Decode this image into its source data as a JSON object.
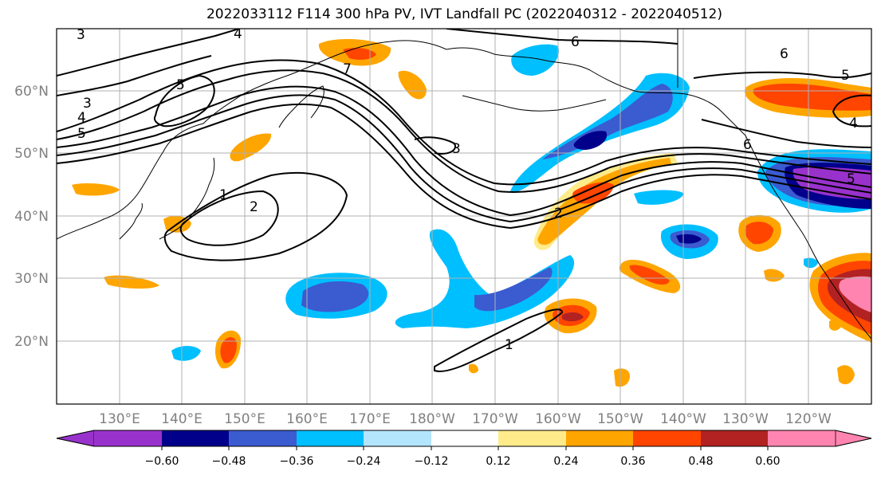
{
  "title": "2022033112 F114 300 hPa PV, IVT Landfall PC (2022040312 - 2022040512)",
  "lon_labels": [
    "130°E",
    "140°E",
    "150°E",
    "160°E",
    "170°E",
    "180°W",
    "170°W",
    "160°W",
    "150°W",
    "140°W",
    "130°W",
    "120°W"
  ],
  "lat_labels": [
    "60°N",
    "50°N",
    "40°N",
    "30°N",
    "20°N"
  ],
  "colorbar": {
    "ticks": [
      "−0.60",
      "−0.48",
      "−0.36",
      "−0.24",
      "−0.12",
      "0.12",
      "0.24",
      "0.36",
      "0.48",
      "0.60"
    ],
    "colors": [
      "#9932cc",
      "#00008b",
      "#3b5bd0",
      "#00bfff",
      "#b3e5fc",
      "#ffffff",
      "#ffeb8a",
      "#ffa500",
      "#ff4500",
      "#b22222",
      "#ff85b0"
    ]
  },
  "contour_labels": [
    "3",
    "4",
    "6",
    "5",
    "3",
    "4",
    "5",
    "6",
    "5",
    "4",
    "3",
    "2",
    "1",
    "2",
    "1",
    "6",
    "7",
    "5"
  ]
}
